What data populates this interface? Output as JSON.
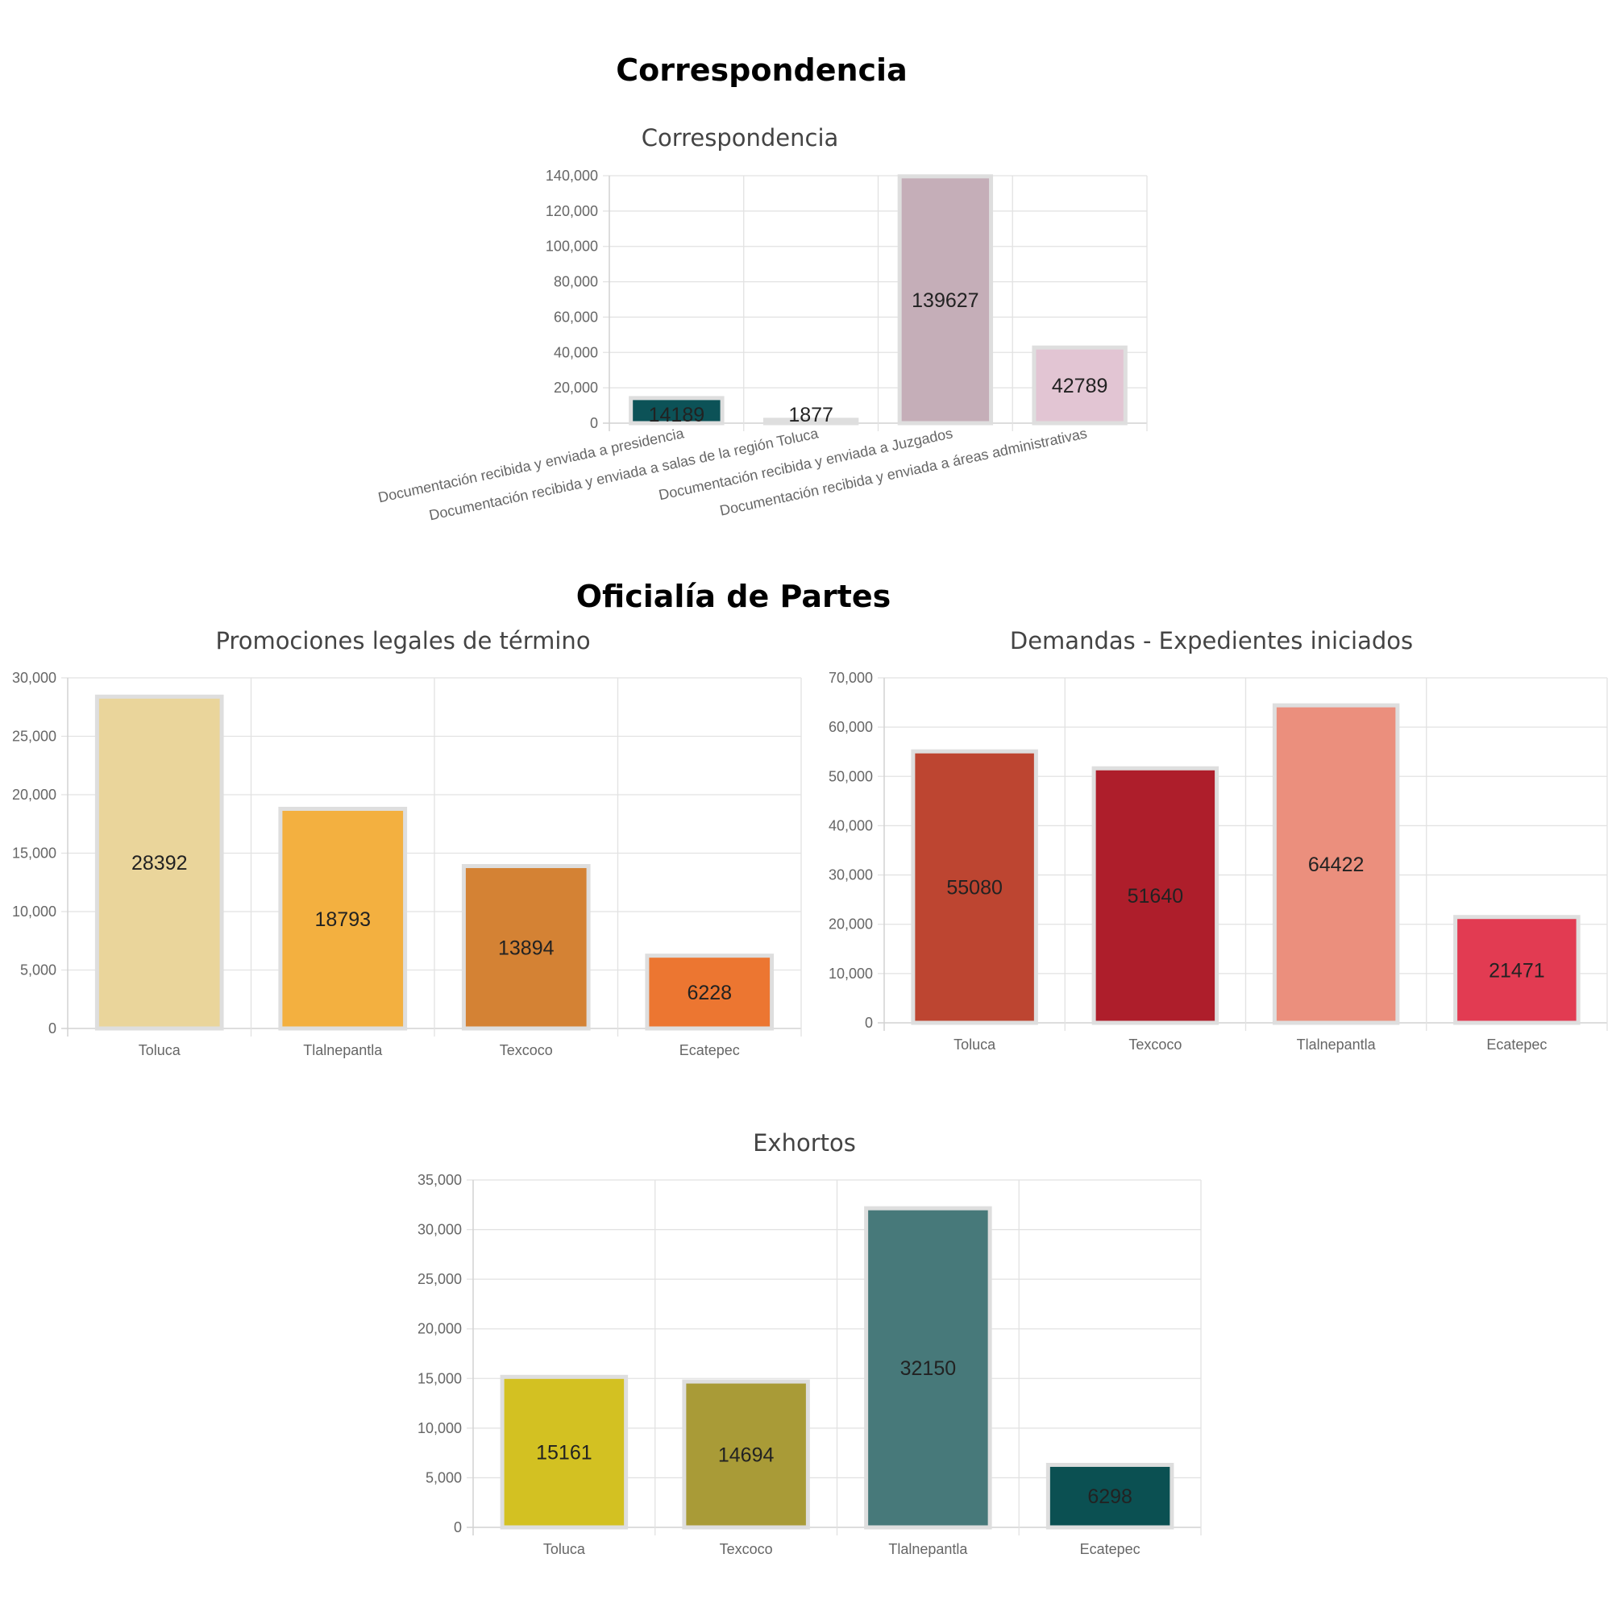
{
  "sections": {
    "correspondencia": "Correspondencia",
    "oficialia": "Oficialía de Partes"
  },
  "chart_data": [
    {
      "type": "bar",
      "title": "Correspondencia",
      "categories": [
        "Documentación recibida y enviada a presidencia",
        "Documentación recibida y enviada a salas de la región Toluca",
        "Documentación recibida y enviada a Juzgados",
        "Documentación recibida y enviada a áreas administrativas"
      ],
      "values": [
        14189,
        1877,
        139627,
        42789
      ],
      "colors": [
        "#0c5257",
        "#8b4f5c",
        "#c5aeb8",
        "#e2c5d3"
      ],
      "ylim": [
        0,
        140000
      ],
      "yticks": [
        0,
        20000,
        40000,
        60000,
        80000,
        100000,
        120000,
        140000
      ],
      "ytick_labels": [
        "0",
        "20,000",
        "40,000",
        "60,000",
        "80,000",
        "100,000",
        "120,000",
        "140,000"
      ],
      "grid": true,
      "legend": "none",
      "xlabel": "",
      "ylabel": ""
    },
    {
      "type": "bar",
      "title": "Promociones legales de término",
      "categories": [
        "Toluca",
        "Tlalnepantla",
        "Texcoco",
        "Ecatepec"
      ],
      "values": [
        28392,
        18793,
        13894,
        6228
      ],
      "colors": [
        "#ead59b",
        "#f3b040",
        "#d48234",
        "#ec7631"
      ],
      "ylim": [
        0,
        30000
      ],
      "yticks": [
        0,
        5000,
        10000,
        15000,
        20000,
        25000,
        30000
      ],
      "ytick_labels": [
        "0",
        "5,000",
        "10,000",
        "15,000",
        "20,000",
        "25,000",
        "30,000"
      ],
      "grid": true,
      "legend": "none",
      "xlabel": "",
      "ylabel": ""
    },
    {
      "type": "bar",
      "title": "Demandas - Expedientes iniciados",
      "categories": [
        "Toluca",
        "Texcoco",
        "Tlalnepantla",
        "Ecatepec"
      ],
      "values": [
        55080,
        51640,
        64422,
        21471
      ],
      "colors": [
        "#bd4531",
        "#ae1e2b",
        "#eb8f7d",
        "#e23b52"
      ],
      "ylim": [
        0,
        70000
      ],
      "yticks": [
        0,
        10000,
        20000,
        30000,
        40000,
        50000,
        60000,
        70000
      ],
      "ytick_labels": [
        "0",
        "10,000",
        "20,000",
        "30,000",
        "40,000",
        "50,000",
        "60,000",
        "70,000"
      ],
      "grid": true,
      "legend": "none",
      "xlabel": "",
      "ylabel": ""
    },
    {
      "type": "bar",
      "title": "Exhortos",
      "categories": [
        "Toluca",
        "Texcoco",
        "Tlalnepantla",
        "Ecatepec"
      ],
      "values": [
        15161,
        14694,
        32150,
        6298
      ],
      "colors": [
        "#d3c122",
        "#a99b37",
        "#47797a",
        "#0b5052"
      ],
      "ylim": [
        0,
        35000
      ],
      "yticks": [
        0,
        5000,
        10000,
        15000,
        20000,
        25000,
        30000,
        35000
      ],
      "ytick_labels": [
        "0",
        "5,000",
        "10,000",
        "15,000",
        "20,000",
        "25,000",
        "30,000",
        "35,000"
      ],
      "grid": true,
      "legend": "none",
      "xlabel": "",
      "ylabel": ""
    }
  ]
}
